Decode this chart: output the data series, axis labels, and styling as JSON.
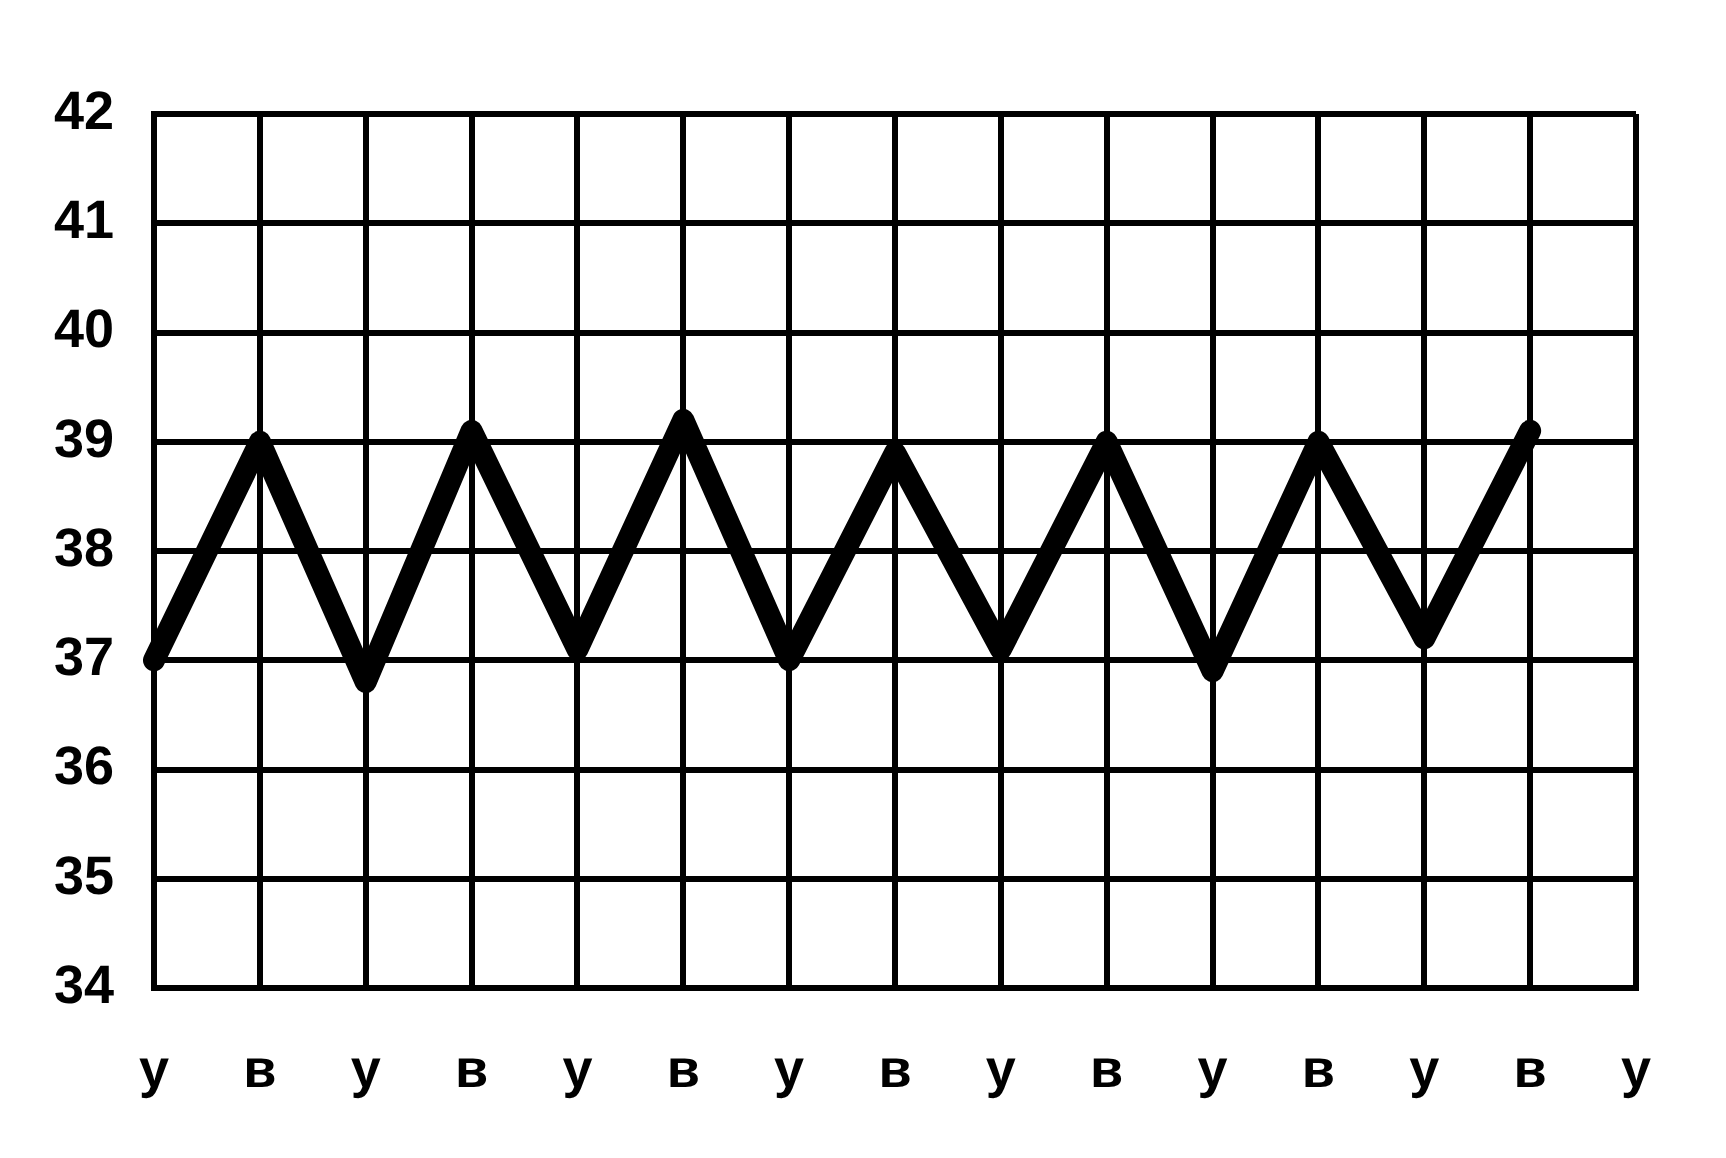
{
  "chart_data": {
    "type": "line",
    "categories": [
      "у",
      "в",
      "у",
      "в",
      "у",
      "в",
      "у",
      "в",
      "у",
      "в",
      "у",
      "в",
      "у",
      "в",
      "у"
    ],
    "series": [
      {
        "color": "#000000",
        "values": [
          37,
          39,
          36.8,
          39.1,
          37.1,
          39.2,
          37,
          38.9,
          37.1,
          39,
          36.9,
          39,
          37.2,
          39.1,
          null
        ]
      }
    ],
    "ylim": [
      34,
      42
    ],
    "yticks": [
      34,
      35,
      36,
      37,
      38,
      39,
      40,
      41,
      42
    ],
    "grid": true,
    "legend": false,
    "marker": "none",
    "line_style": "solid"
  }
}
